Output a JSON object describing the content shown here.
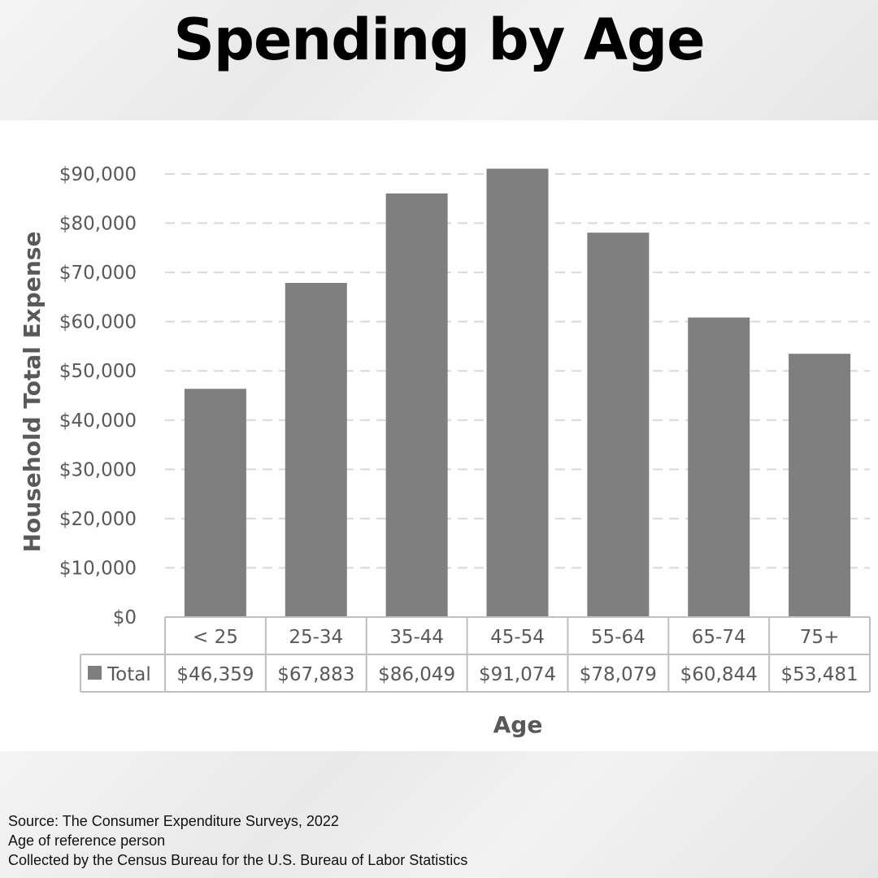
{
  "title": "Spending by Age",
  "chart_data": {
    "type": "bar",
    "categories": [
      "< 25",
      "25-34",
      "35-44",
      "45-54",
      "55-64",
      "65-74",
      "75+"
    ],
    "series": [
      {
        "name": "Total",
        "values": [
          46359,
          67883,
          86049,
          91074,
          78079,
          60844,
          53481
        ]
      }
    ],
    "value_labels": [
      "$46,359",
      "$67,883",
      "$86,049",
      "$91,074",
      "$78,079",
      "$60,844",
      "$53,481"
    ],
    "xlabel": "Age",
    "ylabel": "Household Total Expense",
    "ylim": [
      0,
      90000
    ],
    "yticks": [
      0,
      10000,
      20000,
      30000,
      40000,
      50000,
      60000,
      70000,
      80000,
      90000
    ],
    "ytick_labels": [
      "$0",
      "$10,000",
      "$20,000",
      "$30,000",
      "$40,000",
      "$50,000",
      "$60,000",
      "$70,000",
      "$80,000",
      "$90,000"
    ],
    "grid": "horizontal dashed",
    "data_table": true,
    "bar_color": "#7f7f7f"
  },
  "source_lines": [
    "Source: The Consumer Expenditure Surveys, 2022",
    "Age of reference person",
    "Collected by the Census Bureau for the U.S. Bureau of Labor Statistics"
  ]
}
